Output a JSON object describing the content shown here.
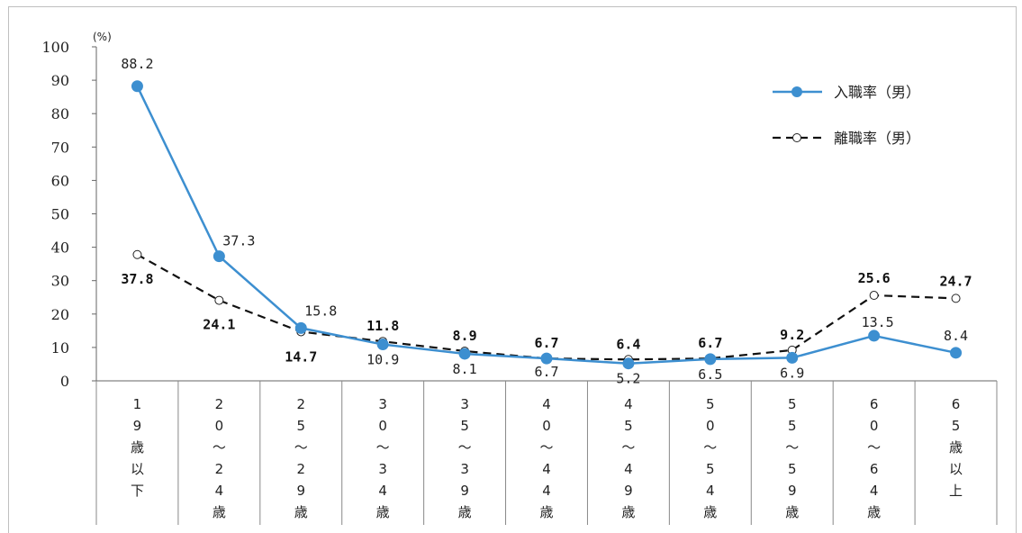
{
  "chart_data": {
    "type": "line",
    "unit": "(%)",
    "ylim": [
      0,
      100
    ],
    "yticks": [
      "0",
      "10",
      "20",
      "30",
      "40",
      "50",
      "60",
      "70",
      "80",
      "90",
      "100"
    ],
    "categories": [
      "19歳以下",
      "20～24歳",
      "25～29歳",
      "30～34歳",
      "35～39歳",
      "40～44歳",
      "45～49歳",
      "50～54歳",
      "55～59歳",
      "60～64歳",
      "65歳以上"
    ],
    "category_glyphs": [
      [
        "1",
        "9",
        "歳",
        "以",
        "下"
      ],
      [
        "2",
        "0",
        "～",
        "2",
        "4",
        "歳"
      ],
      [
        "2",
        "5",
        "～",
        "2",
        "9",
        "歳"
      ],
      [
        "3",
        "0",
        "～",
        "3",
        "4",
        "歳"
      ],
      [
        "3",
        "5",
        "～",
        "3",
        "9",
        "歳"
      ],
      [
        "4",
        "0",
        "～",
        "4",
        "4",
        "歳"
      ],
      [
        "4",
        "5",
        "～",
        "4",
        "9",
        "歳"
      ],
      [
        "5",
        "0",
        "～",
        "5",
        "4",
        "歳"
      ],
      [
        "5",
        "5",
        "～",
        "5",
        "9",
        "歳"
      ],
      [
        "6",
        "0",
        "～",
        "6",
        "4",
        "歳"
      ],
      [
        "6",
        "5",
        "歳",
        "以",
        "上"
      ]
    ],
    "series": [
      {
        "name": "入職率（男）",
        "color": "#3d8fd0",
        "style": "solid",
        "marker": "filled-circle",
        "values": [
          88.2,
          37.3,
          15.8,
          10.9,
          8.1,
          6.7,
          5.2,
          6.5,
          6.9,
          13.5,
          8.4
        ],
        "labels": [
          "88.2",
          "37.3",
          "15.8",
          "10.9",
          "8.1",
          "6.7",
          "5.2",
          "6.5",
          "6.9",
          "13.5",
          "8.4"
        ]
      },
      {
        "name": "離職率（男）",
        "color": "#111111",
        "style": "dashed",
        "marker": "open-circle",
        "values": [
          37.8,
          24.1,
          14.7,
          11.8,
          8.9,
          6.7,
          6.4,
          6.7,
          9.2,
          25.6,
          24.7
        ],
        "labels": [
          "37.8",
          "24.1",
          "14.7",
          "11.8",
          "8.9",
          "6.7",
          "6.4",
          "6.7",
          "9.2",
          "25.6",
          "24.7"
        ]
      }
    ],
    "legend_position": "top-right",
    "grid": false
  }
}
